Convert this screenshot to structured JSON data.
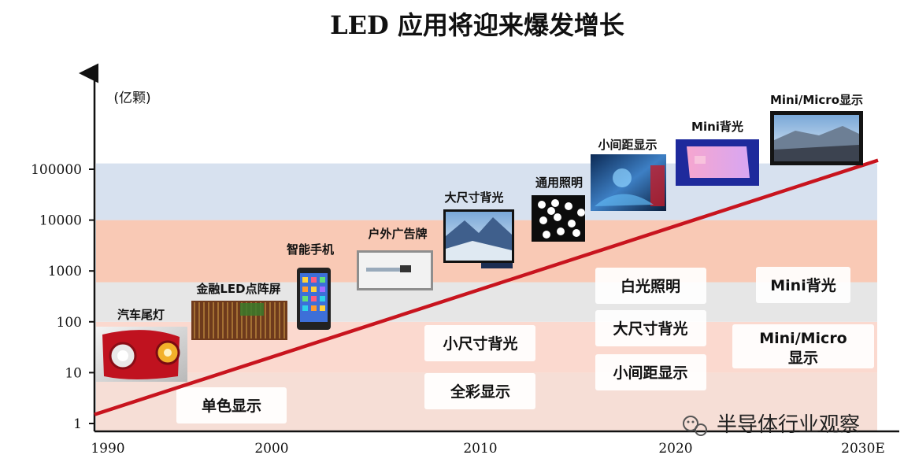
{
  "chart_data": {
    "type": "area",
    "title": "LED 应用将迎来爆发增长",
    "y_unit": "(亿颗)",
    "x_ticks": [
      "1990",
      "2000",
      "2010",
      "2020",
      "2030E"
    ],
    "y_ticks": [
      "1",
      "10",
      "100",
      "1000",
      "10000",
      "100000"
    ],
    "ylog": true,
    "ylim": [
      1,
      100000
    ],
    "trend_line": {
      "x": [
        1990,
        2030
      ],
      "y": [
        1.5,
        150000
      ]
    },
    "bands": [
      {
        "y_from": 1,
        "y_to": 10,
        "color": "#f6ded6"
      },
      {
        "y_from": 10,
        "y_to": 100,
        "color": "#fbd9cf"
      },
      {
        "y_from": 100,
        "y_to": 600,
        "color": "#e6e6e6"
      },
      {
        "y_from": 600,
        "y_to": 10000,
        "color": "#f9c9b5"
      },
      {
        "y_from": 10000,
        "y_to": 130000,
        "color": "#d7e1ef"
      }
    ],
    "milestones": [
      {
        "label": "汽车尾灯",
        "year": 1990,
        "icon": "car-tail-light-photo"
      },
      {
        "label": "金融LED点阵屏",
        "year": 1997,
        "icon": "led-dot-matrix-photo"
      },
      {
        "label": "智能手机",
        "year": 2001,
        "icon": "smartphone-photo"
      },
      {
        "label": "户外广告牌",
        "year": 2004,
        "icon": "billboard-photo"
      },
      {
        "label": "大尺寸背光",
        "year": 2009,
        "icon": "large-backlight-tv-photo"
      },
      {
        "label": "通用照明",
        "year": 2013,
        "icon": "general-lighting-photo"
      },
      {
        "label": "小间距显示",
        "year": 2017,
        "icon": "fine-pitch-display-photo"
      },
      {
        "label": "Mini背光",
        "year": 2022,
        "icon": "mini-backlight-panel-photo"
      },
      {
        "label": "Mini/Micro显示",
        "year": 2027,
        "icon": "micro-led-display-photo"
      }
    ],
    "stage_boxes": [
      {
        "label": "单色显示"
      },
      {
        "label": "全彩显示"
      },
      {
        "label": "小尺寸背光"
      },
      {
        "label": "小间距显示"
      },
      {
        "label": "大尺寸背光"
      },
      {
        "label": "白光照明"
      },
      {
        "label": "Mini/Micro",
        "label2": "显示"
      },
      {
        "label": "Mini背光"
      }
    ],
    "trend_color": "#c8141e",
    "grid": false,
    "legend": "none"
  },
  "watermark": {
    "text": "半导体行业观察",
    "icon": "wechat-icon"
  }
}
